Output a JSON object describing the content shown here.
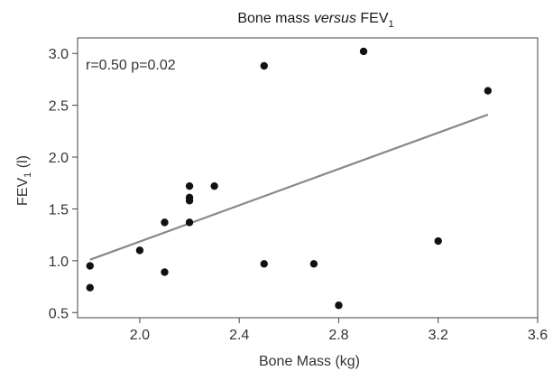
{
  "chart_data": {
    "type": "scatter",
    "title": {
      "prefix": "Bone mass ",
      "italic": "versus",
      "suffix": " FEV",
      "subscript": "1"
    },
    "xlabel": "Bone Mass (kg)",
    "ylabel": {
      "main": "FEV",
      "subscript": "1",
      "unit": " (l)"
    },
    "xlim": [
      1.75,
      3.6
    ],
    "ylim": [
      0.45,
      3.15
    ],
    "xticks": [
      "2.0",
      "2.4",
      "2.8",
      "3.2",
      "3.6"
    ],
    "yticks": [
      "0.5",
      "1.0",
      "1.5",
      "2.0",
      "2.5",
      "3.0"
    ],
    "annotation": "r=0.50 p=0.02",
    "points": [
      {
        "x": 1.8,
        "y": 0.95
      },
      {
        "x": 1.8,
        "y": 0.74
      },
      {
        "x": 2.0,
        "y": 1.1
      },
      {
        "x": 2.1,
        "y": 1.37
      },
      {
        "x": 2.1,
        "y": 0.89
      },
      {
        "x": 2.2,
        "y": 1.72
      },
      {
        "x": 2.2,
        "y": 1.61
      },
      {
        "x": 2.2,
        "y": 1.58
      },
      {
        "x": 2.2,
        "y": 1.37
      },
      {
        "x": 2.3,
        "y": 1.72
      },
      {
        "x": 2.5,
        "y": 2.88
      },
      {
        "x": 2.5,
        "y": 0.97
      },
      {
        "x": 2.7,
        "y": 0.97
      },
      {
        "x": 2.8,
        "y": 0.57
      },
      {
        "x": 2.9,
        "y": 3.02
      },
      {
        "x": 3.2,
        "y": 1.19
      },
      {
        "x": 3.4,
        "y": 2.64
      }
    ],
    "regression_line": {
      "x": [
        1.8,
        3.4
      ],
      "y": [
        1.01,
        2.41
      ]
    },
    "grid": false,
    "point_color": "#111111",
    "line_color": "#888888"
  }
}
